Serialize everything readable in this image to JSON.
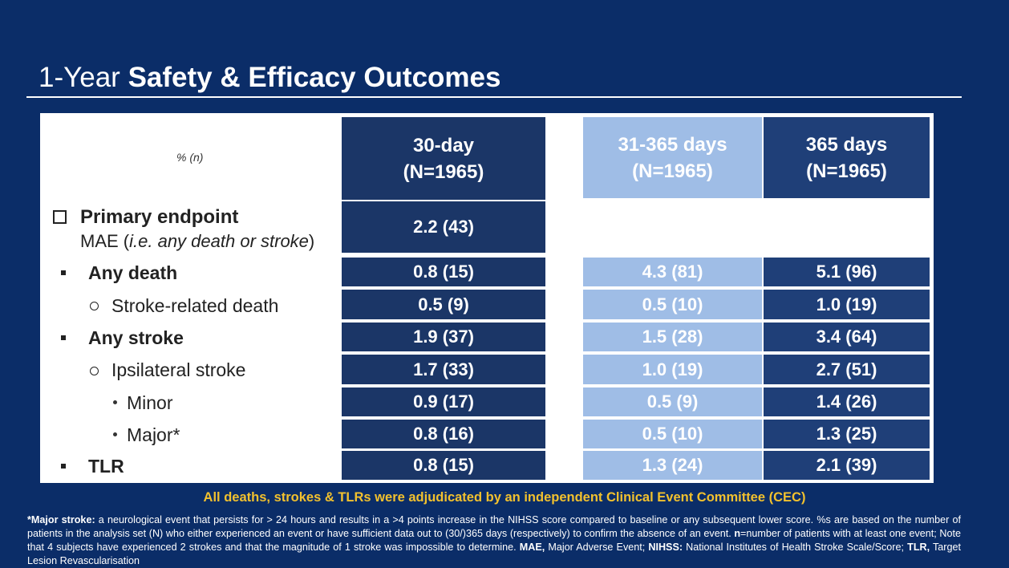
{
  "title": {
    "prefix": "1-Year",
    "bold": "Safety & Efficacy Outcomes"
  },
  "table": {
    "unit_label": "% (n)",
    "columns": [
      {
        "period": "30-day",
        "n": "(N=1965)"
      },
      {
        "period": "31-365 days",
        "n": "(N=1965)"
      },
      {
        "period": "365 days",
        "n": "(N=1965)"
      }
    ],
    "primary": {
      "label": "Primary endpoint",
      "sub_prefix": "MAE (",
      "sub_italic": "i.e. any death or stroke",
      "sub_suffix": ")",
      "value": "2.2 (43)"
    },
    "rows": [
      {
        "label": "Any death",
        "values": [
          "0.8 (15)",
          "4.3 (81)",
          "5.1 (96)"
        ]
      },
      {
        "label": "Stroke-related death",
        "values": [
          "0.5 (9)",
          "0.5 (10)",
          "1.0 (19)"
        ]
      },
      {
        "label": "Any stroke",
        "values": [
          "1.9 (37)",
          "1.5 (28)",
          "3.4 (64)"
        ]
      },
      {
        "label": "Ipsilateral stroke",
        "values": [
          "1.7 (33)",
          "1.0 (19)",
          "2.7 (51)"
        ]
      },
      {
        "label": "Minor",
        "values": [
          "0.9 (17)",
          "0.5 (9)",
          "1.4 (26)"
        ]
      },
      {
        "label": "Major*",
        "values": [
          "0.8 (16)",
          "0.5 (10)",
          "1.3 (25)"
        ]
      },
      {
        "label": "TLR",
        "values": [
          "0.8 (15)",
          "1.3 (24)",
          "2.1 (39)"
        ]
      }
    ]
  },
  "adjudication": "All deaths, strokes & TLRs were adjudicated by an independent Clinical Event Committee (CEC)",
  "footnote": {
    "t1": "*Major stroke:",
    "t2": " a neurological event that persists for > 24 hours and results in a >4 points increase in the NIHSS score compared to baseline or any subsequent lower score. %s are based on the number of patients in the analysis set (N) who either experienced an event or have sufficient data out to (30/)365 days (respectively) to confirm the absence of an event. ",
    "t3": "n",
    "t4": "=number of patients with at least one event; Note that 4 subjects have experienced 2 strokes and that the magnitude of 1 stroke was impossible to determine. ",
    "t5": "MAE,",
    "t6": " Major Adverse Event; ",
    "t7": "NIHSS:",
    "t8": " National Institutes of Health Stroke Scale/Score; ",
    "t9": "TLR,",
    "t10": " Target Lesion Revascularisation"
  },
  "colors": {
    "background": "#0b2d68",
    "col1": "#1b3667",
    "col2": "#9fbde6",
    "col3": "#1f3f78",
    "accent": "#f2c12e"
  }
}
